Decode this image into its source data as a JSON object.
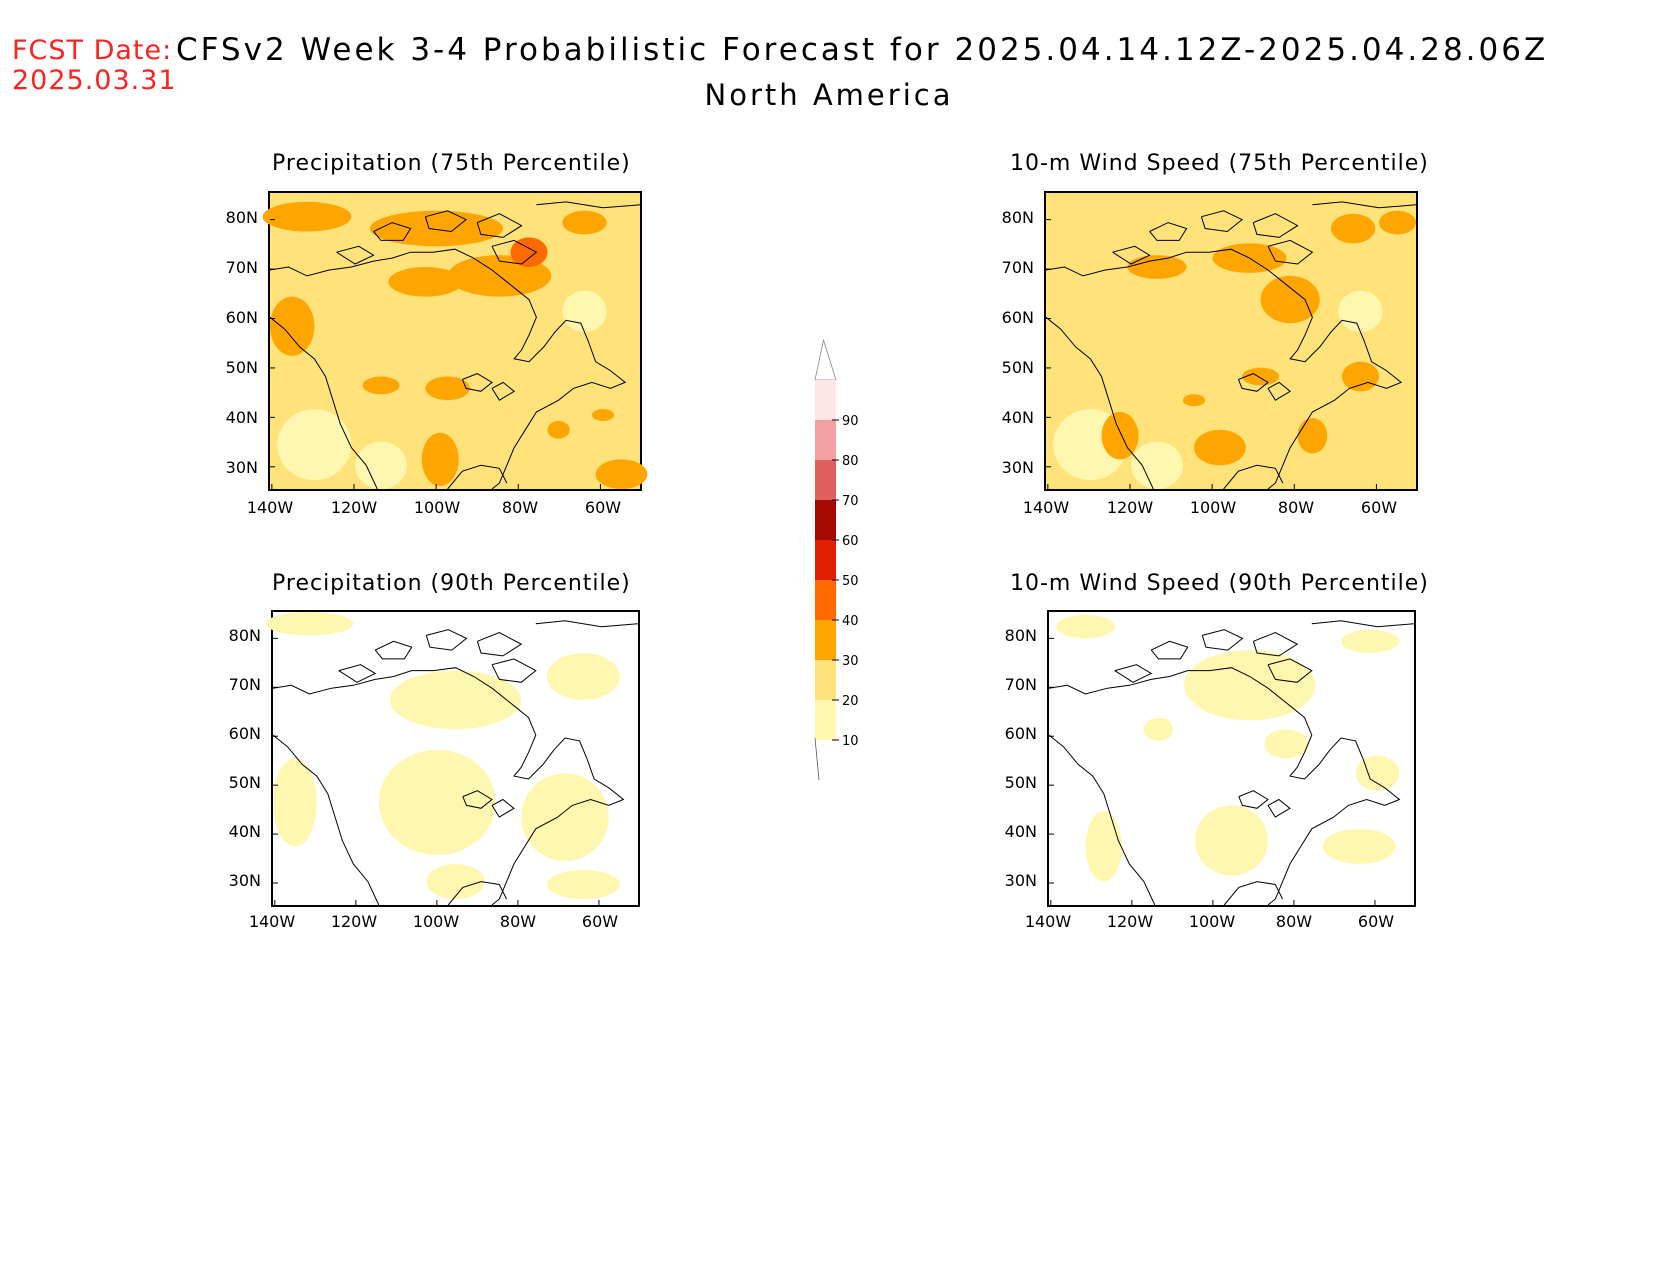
{
  "header": {
    "fcst_label": "FCST Date:",
    "fcst_date": "2025.03.31",
    "title": "CFSv2 Week 3-4 Probabilistic Forecast for 2025.04.14.12Z-2025.04.28.06Z",
    "region": "North America"
  },
  "panels": [
    {
      "id": "precip75",
      "title": "Precipitation (75th Percentile)",
      "base_level": 20,
      "hot_level": 30
    },
    {
      "id": "wind75",
      "title": "10-m Wind Speed (75th Percentile)",
      "base_level": 20,
      "hot_level": 30
    },
    {
      "id": "precip90",
      "title": "Precipitation (90th Percentile)",
      "base_level": 0,
      "hot_level": 10
    },
    {
      "id": "wind90",
      "title": "10-m Wind Speed (90th Percentile)",
      "base_level": 0,
      "hot_level": 10
    }
  ],
  "axes": {
    "lat_ticks": [
      "80N",
      "70N",
      "60N",
      "50N",
      "40N",
      "30N"
    ],
    "lon_ticks": [
      "140W",
      "120W",
      "100W",
      "80W",
      "60W"
    ]
  },
  "colorbar": {
    "levels": [
      "10",
      "20",
      "30",
      "40",
      "50",
      "60",
      "70",
      "80",
      "90"
    ],
    "colors": [
      "#fff7b0",
      "#ffe27a",
      "#ffa500",
      "#ff6a00",
      "#e02000",
      "#a50a00",
      "#e06060",
      "#f5a0a0",
      "#ffe6e6"
    ]
  }
}
